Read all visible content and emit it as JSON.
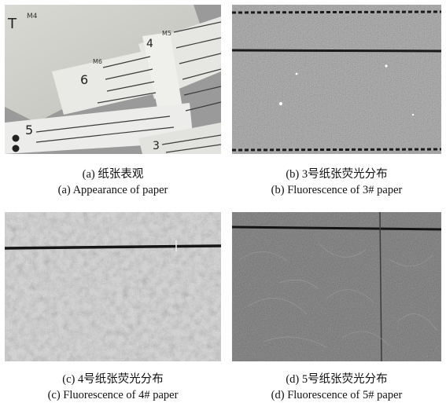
{
  "figure": {
    "panels": [
      {
        "id": "a",
        "caption_cn": "(a) 纸张表观",
        "caption_en": "(a) Appearance of paper"
      },
      {
        "id": "b",
        "caption_cn": "(b) 3号纸张荧光分布",
        "caption_en": "(b) Fluorescence of 3# paper"
      },
      {
        "id": "c",
        "caption_cn": "(c) 4号纸张荧光分布",
        "caption_en": "(c) Fluorescence of 4# paper"
      },
      {
        "id": "d",
        "caption_cn": "(d) 5号纸张荧光分布",
        "caption_en": "(d) Fluorescence of 5# paper"
      }
    ],
    "photo_labels": [
      "T",
      "M4",
      "4",
      "M5",
      "6",
      "M6",
      "5",
      "3"
    ]
  }
}
